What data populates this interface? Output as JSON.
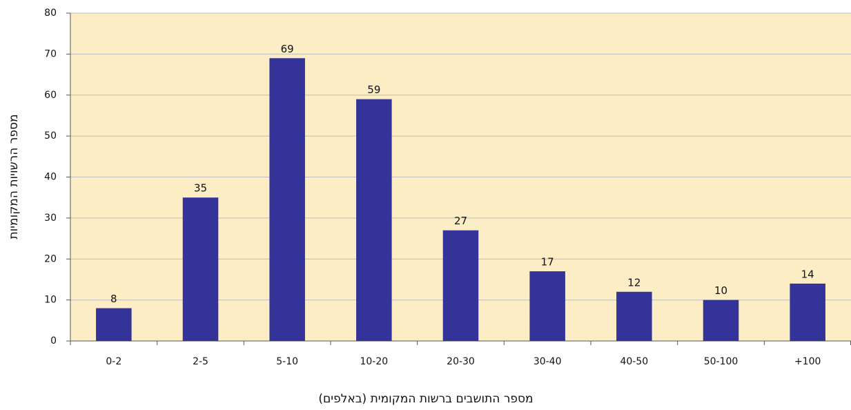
{
  "chart_data": {
    "type": "bar",
    "categories": [
      "0-2",
      "2-5",
      "5-10",
      "10-20",
      "20-30",
      "30-40",
      "40-50",
      "50-100",
      "+100"
    ],
    "values": [
      8,
      35,
      69,
      59,
      27,
      17,
      12,
      10,
      14
    ],
    "color": "#333399",
    "ylim": [
      0,
      80
    ],
    "yticks": [
      0,
      10,
      20,
      30,
      40,
      50,
      60,
      70,
      80
    ],
    "grid": true,
    "y_label": "מספר הרשויות המקומיות",
    "x_label": "מספר התושבים ברשות המקומית (באלפים)",
    "plot_background": "#fdedc4"
  }
}
